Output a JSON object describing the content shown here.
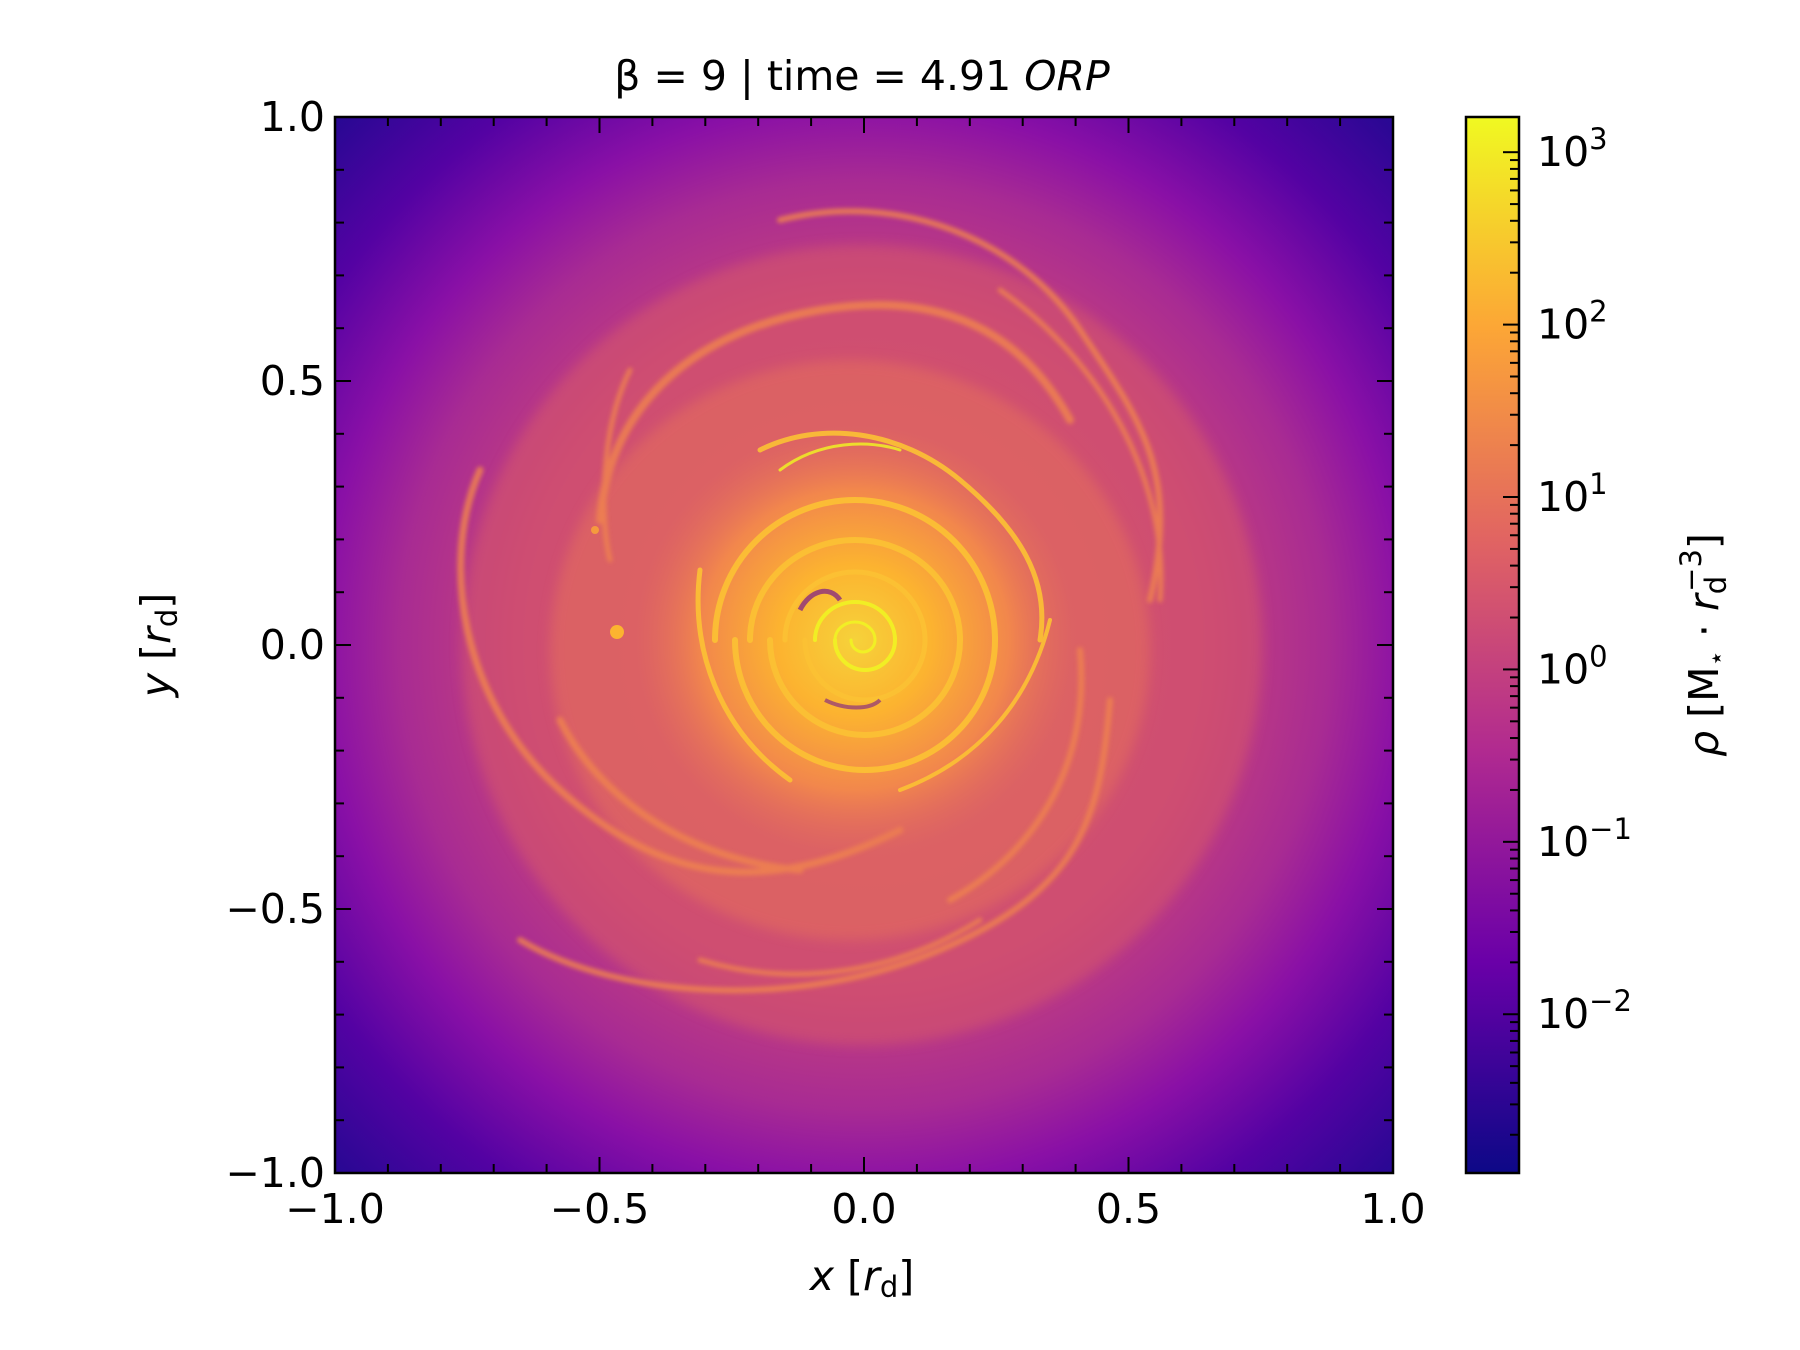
{
  "chart_data": {
    "type": "heatmap",
    "title": {
      "prefix": "β = 9 | time = 4.91 ",
      "italic": "ORP"
    },
    "xlabel": {
      "var": "x",
      "unit": "r",
      "unit_sub": "d"
    },
    "ylabel": {
      "var": "y",
      "unit": "r",
      "unit_sub": "d"
    },
    "xlim": [
      -1.0,
      1.0
    ],
    "ylim": [
      -1.0,
      1.0
    ],
    "xticks": [
      -1.0,
      -0.5,
      0.0,
      0.5,
      1.0
    ],
    "xtick_labels": [
      "−1.0",
      "−0.5",
      "0.0",
      "0.5",
      "1.0"
    ],
    "yticks": [
      -1.0,
      -0.5,
      0.0,
      0.5,
      1.0
    ],
    "ytick_labels": [
      "−1.0",
      "−0.5",
      "0.0",
      "0.5",
      "1.0"
    ],
    "colormap": "plasma",
    "colormap_stops": [
      "#0d0887",
      "#6a00a8",
      "#b12a90",
      "#e16462",
      "#fca636",
      "#f0f921"
    ],
    "colorbar": {
      "scale": "log",
      "range": [
        0.0012,
        1600
      ],
      "ticks": [
        0.01,
        0.1,
        1,
        10,
        100,
        1000
      ],
      "tick_labels": [
        {
          "base": "10",
          "exp": "−2"
        },
        {
          "base": "10",
          "exp": "−1"
        },
        {
          "base": "10",
          "exp": "0"
        },
        {
          "base": "10",
          "exp": "1"
        },
        {
          "base": "10",
          "exp": "2"
        },
        {
          "base": "10",
          "exp": "3"
        }
      ],
      "label": {
        "symbol": "ρ",
        "open": " [M",
        "star": "⋆",
        "middle": " · ",
        "r": "r",
        "r_sub": "d",
        "r_exp": "−3",
        "close": "]"
      }
    },
    "feature": "gas density map of a spiral disk: dense core (~10^3) at the origin, spiral arms ~10^1–10^2 out to r≈0.6, diffuse envelope falling to ~10^-3 at the corners"
  }
}
